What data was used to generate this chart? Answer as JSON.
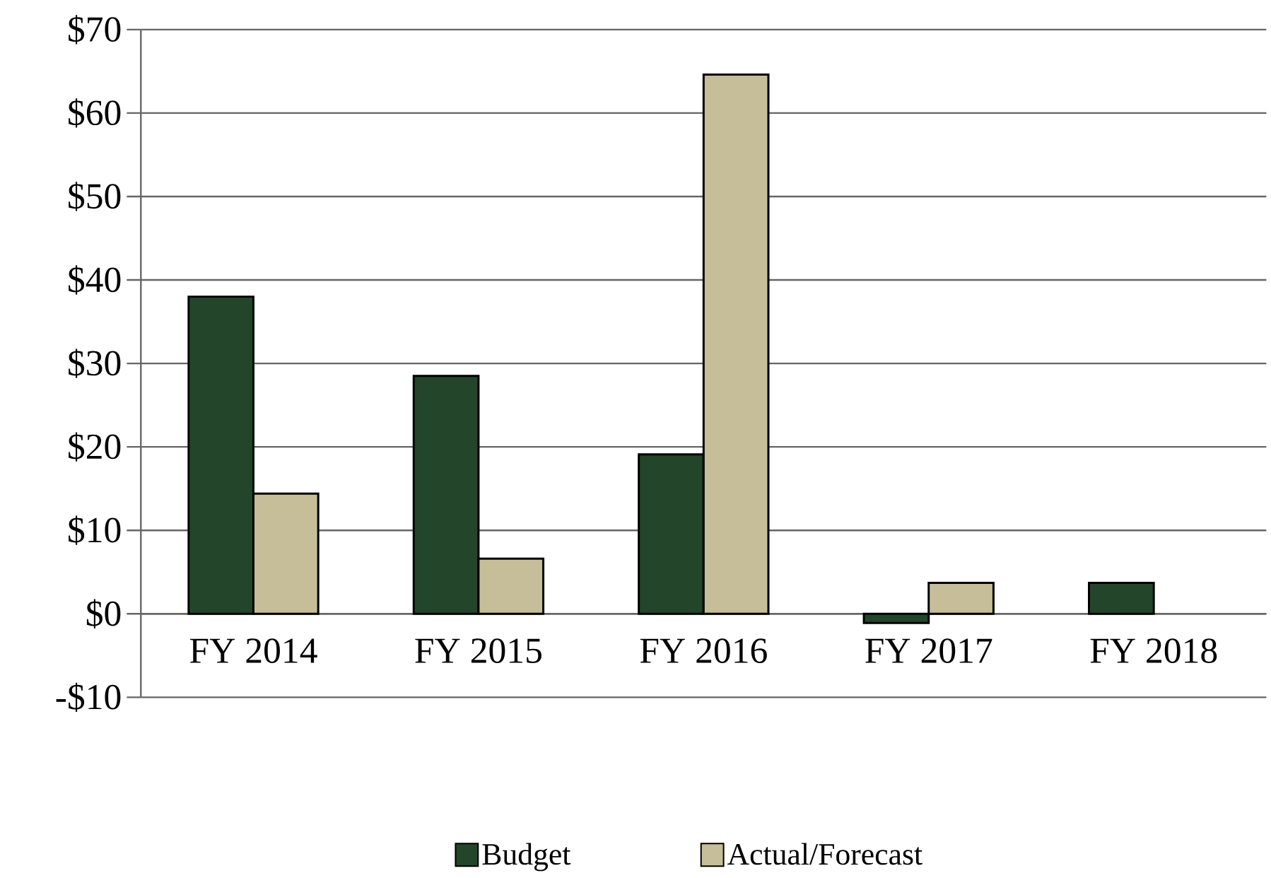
{
  "chart_data": {
    "type": "bar",
    "categories": [
      "FY 2014",
      "FY 2015",
      "FY 2016",
      "FY 2017",
      "FY 2018"
    ],
    "series": [
      {
        "name": "Budget",
        "color": "#23452a",
        "values": [
          38.0,
          28.5,
          19.1,
          -1.1,
          3.7
        ]
      },
      {
        "name": "Actual/Forecast",
        "color": "#c5be98",
        "values": [
          14.4,
          6.6,
          64.6,
          3.7,
          null
        ]
      }
    ],
    "ylim": [
      -10,
      70
    ],
    "yticks": [
      {
        "value": -10,
        "label": "-$10"
      },
      {
        "value": 0,
        "label": "$0"
      },
      {
        "value": 10,
        "label": "$10"
      },
      {
        "value": 20,
        "label": "$20"
      },
      {
        "value": 30,
        "label": "$30"
      },
      {
        "value": 40,
        "label": "$40"
      },
      {
        "value": 50,
        "label": "$50"
      },
      {
        "value": 60,
        "label": "$60"
      },
      {
        "value": 70,
        "label": "$70"
      }
    ],
    "grid": "y",
    "legend": "bottom"
  }
}
